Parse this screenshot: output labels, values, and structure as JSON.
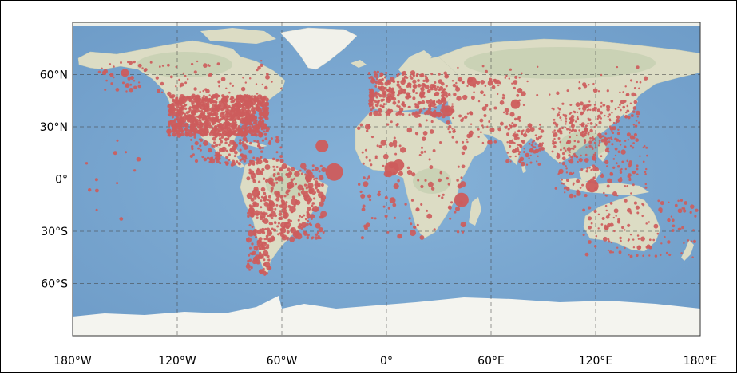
{
  "map": {
    "projection": "plate-carree",
    "extent": {
      "lon": [
        -180,
        180
      ],
      "lat": [
        -90,
        90
      ]
    },
    "colors": {
      "ocean": "#7ba7cf",
      "ocean_deep": "#6e9cc8",
      "land": "#dcdcc4",
      "land_green": "#b9c9aa",
      "ice": "#f4f4ef",
      "marker": "#cd5c5c",
      "grid": "#444444"
    },
    "gridlines": {
      "visible": true,
      "style": "dashed"
    },
    "x_ticks": [
      {
        "value": -180,
        "label": "180°W"
      },
      {
        "value": -120,
        "label": "120°W"
      },
      {
        "value": -60,
        "label": "60°W"
      },
      {
        "value": 0,
        "label": "0°"
      },
      {
        "value": 60,
        "label": "60°E"
      },
      {
        "value": 120,
        "label": "120°E"
      },
      {
        "value": 180,
        "label": "180°E"
      }
    ],
    "y_ticks": [
      {
        "value": 60,
        "label": "60°N"
      },
      {
        "value": 30,
        "label": "30°N"
      },
      {
        "value": 0,
        "label": "0°"
      },
      {
        "value": -30,
        "label": "30°S"
      },
      {
        "value": -60,
        "label": "60°S"
      }
    ],
    "big_markers": [
      {
        "lon": -30,
        "lat": 4,
        "size": 11
      },
      {
        "lon": 3,
        "lat": 6,
        "size": 9
      },
      {
        "lon": 7,
        "lat": 8,
        "size": 7
      },
      {
        "lon": 43,
        "lat": -12,
        "size": 9
      },
      {
        "lon": 118,
        "lat": -4,
        "size": 8
      },
      {
        "lon": -37,
        "lat": 19,
        "size": 8
      },
      {
        "lon": 35,
        "lat": 39,
        "size": 7
      },
      {
        "lon": 49,
        "lat": 56,
        "size": 6
      },
      {
        "lon": 74,
        "lat": 43,
        "size": 6
      },
      {
        "lon": -150,
        "lat": 61,
        "size": 5
      },
      {
        "lon": -75,
        "lat": -8,
        "size": 5
      }
    ],
    "marker_clusters": [
      {
        "region": "united-states",
        "lon": [
          -125,
          -68
        ],
        "lat": [
          25,
          48
        ],
        "count": 900,
        "size": [
          1.5,
          3.5
        ]
      },
      {
        "region": "mexico-central-america",
        "lon": [
          -112,
          -80
        ],
        "lat": [
          8,
          30
        ],
        "count": 120,
        "size": [
          1.5,
          3.5
        ]
      },
      {
        "region": "canada-alaska",
        "lon": [
          -165,
          -60
        ],
        "lat": [
          48,
          68
        ],
        "count": 90,
        "size": [
          1.2,
          3
        ]
      },
      {
        "region": "south-america-west",
        "lon": [
          -80,
          -66
        ],
        "lat": [
          -55,
          10
        ],
        "count": 160,
        "size": [
          1.5,
          4
        ]
      },
      {
        "region": "south-america-east",
        "lon": [
          -66,
          -36
        ],
        "lat": [
          -35,
          8
        ],
        "count": 220,
        "size": [
          1.5,
          4.5
        ]
      },
      {
        "region": "europe",
        "lon": [
          -10,
          35
        ],
        "lat": [
          36,
          62
        ],
        "count": 260,
        "size": [
          1.5,
          3.5
        ]
      },
      {
        "region": "africa",
        "lon": [
          -16,
          45
        ],
        "lat": [
          -34,
          34
        ],
        "count": 140,
        "size": [
          1.5,
          4
        ]
      },
      {
        "region": "middle-east-central-asia",
        "lon": [
          35,
          80
        ],
        "lat": [
          20,
          58
        ],
        "count": 110,
        "size": [
          1.2,
          3.5
        ]
      },
      {
        "region": "russia",
        "lon": [
          40,
          150
        ],
        "lat": [
          48,
          65
        ],
        "count": 45,
        "size": [
          1.2,
          3
        ]
      },
      {
        "region": "south-asia",
        "lon": [
          68,
          90
        ],
        "lat": [
          8,
          32
        ],
        "count": 90,
        "size": [
          1.2,
          3
        ]
      },
      {
        "region": "east-asia",
        "lon": [
          95,
          145
        ],
        "lat": [
          20,
          45
        ],
        "count": 210,
        "size": [
          1.2,
          3
        ]
      },
      {
        "region": "southeast-asia",
        "lon": [
          95,
          150
        ],
        "lat": [
          -10,
          20
        ],
        "count": 150,
        "size": [
          1.2,
          3.2
        ]
      },
      {
        "region": "australia-nz",
        "lon": [
          113,
          178
        ],
        "lat": [
          -45,
          -12
        ],
        "count": 120,
        "size": [
          1.2,
          3
        ]
      },
      {
        "region": "caribbean-islands",
        "lon": [
          -85,
          -60
        ],
        "lat": [
          10,
          24
        ],
        "count": 40,
        "size": [
          1.5,
          3
        ]
      },
      {
        "region": "pacific-islands",
        "lon": [
          -180,
          -140
        ],
        "lat": [
          -25,
          25
        ],
        "count": 12,
        "size": [
          1.5,
          3
        ]
      }
    ]
  }
}
